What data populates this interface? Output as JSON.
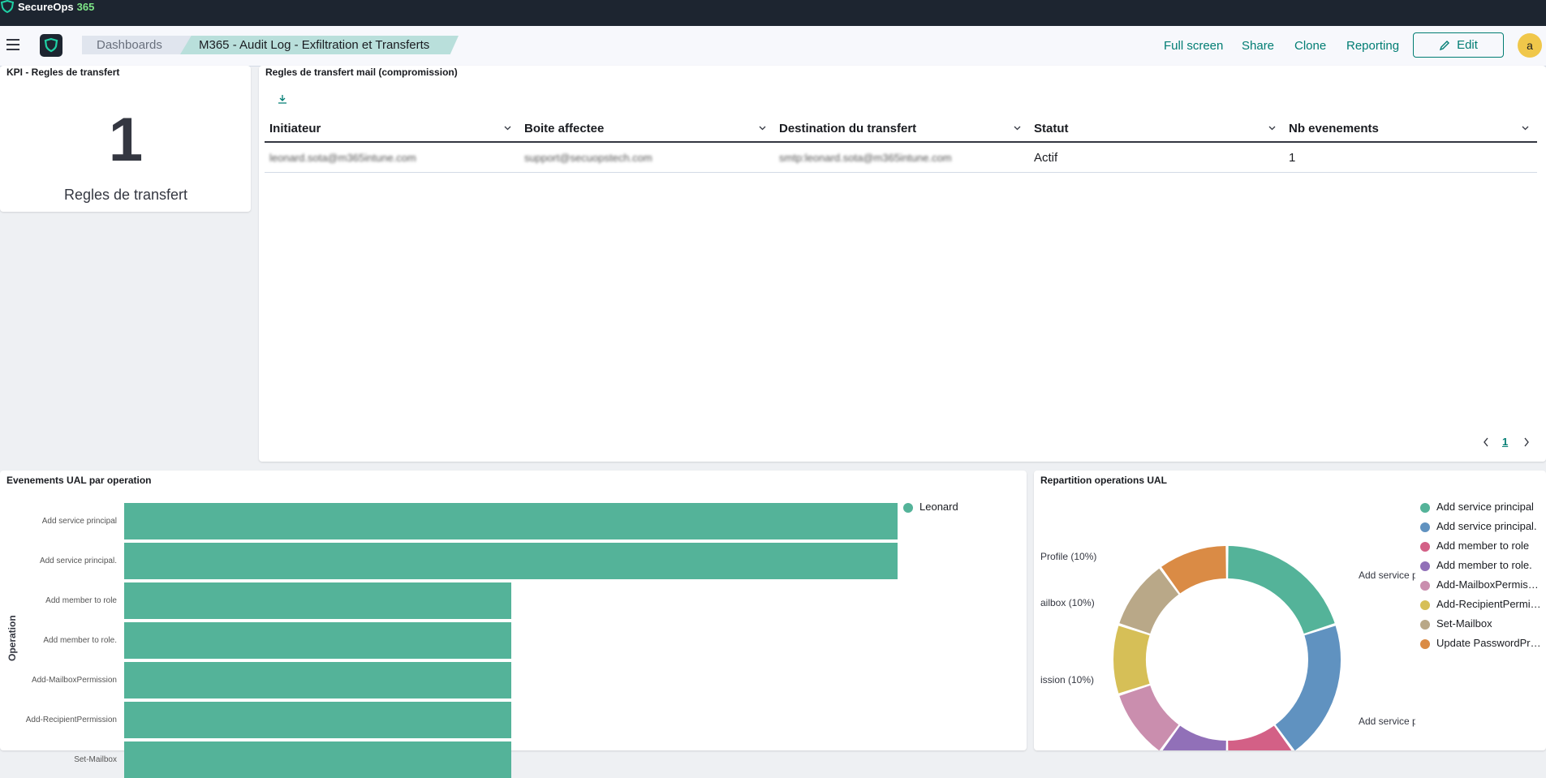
{
  "brand": {
    "name": "SecureOps",
    "suffix": "365"
  },
  "breadcrumbs": [
    "Dashboards",
    "M365 - Audit Log - Exfiltration et Transferts"
  ],
  "nav": {
    "full_screen": "Full screen",
    "share": "Share",
    "clone": "Clone",
    "reporting": "Reporting",
    "edit": "Edit"
  },
  "avatar": "a",
  "kpi": {
    "title": "KPI - Regles de transfert",
    "value": "1",
    "label": "Regles de transfert"
  },
  "rules_table": {
    "title": "Regles de transfert mail (compromission)",
    "columns": [
      "Initiateur",
      "Boite affectee",
      "Destination du transfert",
      "Statut",
      "Nb evenements"
    ],
    "rows": [
      [
        "leonard.sota@m365intune.com",
        "support@secuopstech.com",
        "smtp:leonard.sota@m365intune.com",
        "Actif",
        "1"
      ]
    ],
    "page": "1"
  },
  "bar_panel": {
    "title": "Evenements UAL par operation",
    "ylabel": "Operation",
    "legend": "Leonard"
  },
  "donut_panel": {
    "title": "Repartition operations UAL",
    "legend": [
      "Add service principal",
      "Add service principal.",
      "Add member to role",
      "Add member to role.",
      "Add-MailboxPermission",
      "Add-RecipientPermission",
      "Set-Mailbox",
      "Update PasswordProfile"
    ],
    "callouts": {
      "a": "Profile (10%)",
      "b": "ailbox (10%)",
      "c": "ission (10%)",
      "d": "Add service p",
      "e": "Add service p"
    }
  },
  "chart_data": [
    {
      "type": "bar",
      "orientation": "horizontal",
      "title": "Evenements UAL par operation",
      "ylabel": "Operation",
      "categories": [
        "Add service principal",
        "Add service principal.",
        "Add member to role",
        "Add member to role.",
        "Add-MailboxPermission",
        "Add-RecipientPermission",
        "Set-Mailbox"
      ],
      "series": [
        {
          "name": "Leonard",
          "values": [
            2,
            2,
            1,
            1,
            1,
            1,
            1
          ]
        }
      ],
      "color": "#54b399",
      "legend": "top-right"
    },
    {
      "type": "pie",
      "donut": true,
      "title": "Repartition operations UAL",
      "labels": [
        "Add service principal",
        "Add service principal.",
        "Add member to role",
        "Add member to role.",
        "Add-MailboxPermission",
        "Add-RecipientPermission",
        "Set-Mailbox",
        "Update PasswordProfile"
      ],
      "values": [
        20,
        20,
        10,
        10,
        10,
        10,
        10,
        10
      ],
      "colors": [
        "#54b399",
        "#6092c0",
        "#d36086",
        "#9170b8",
        "#ca8eae",
        "#d6bf57",
        "#b9a888",
        "#da8b45"
      ],
      "legend": "right"
    }
  ]
}
